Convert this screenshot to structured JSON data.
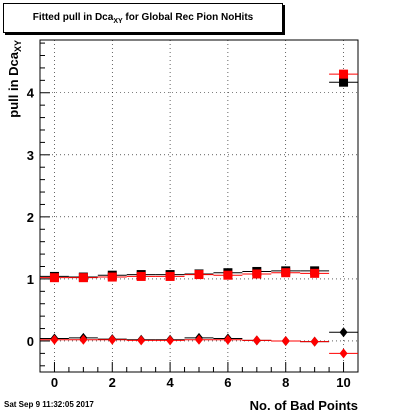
{
  "title": {
    "prefix": "Fitted pull in Dca",
    "sub": "XY",
    "suffix": " for Global Rec Pion NoHits"
  },
  "timestamp": "Sat Sep  9 11:32:05 2017",
  "chart_data": {
    "type": "scatter",
    "title": "Fitted pull in Dca_XY for Global Rec Pion NoHits",
    "xlabel": "No. of Bad Points",
    "ylabel": "pull in Dca",
    "ylabel_sub": "XY",
    "xlim": [
      -0.5,
      10.5
    ],
    "ylim": [
      -0.5,
      4.85
    ],
    "xticks": [
      0,
      2,
      4,
      6,
      8,
      10
    ],
    "yticks": [
      0,
      1,
      2,
      3,
      4
    ],
    "grid": true,
    "series": [
      {
        "marker": "square",
        "color": "#000000",
        "x": [
          0,
          1,
          2,
          3,
          4,
          5,
          6,
          7,
          8,
          9,
          10
        ],
        "y": [
          1.04,
          1.03,
          1.06,
          1.07,
          1.07,
          1.08,
          1.1,
          1.12,
          1.13,
          1.13,
          4.17
        ]
      },
      {
        "marker": "square",
        "color": "#ff0000",
        "x": [
          0,
          1,
          2,
          3,
          4,
          5,
          6,
          7,
          8,
          9,
          10
        ],
        "y": [
          1.02,
          1.02,
          1.03,
          1.04,
          1.04,
          1.07,
          1.06,
          1.08,
          1.1,
          1.09,
          4.3
        ]
      },
      {
        "marker": "diamond",
        "color": "#000000",
        "x": [
          0,
          1,
          2,
          3,
          4,
          5,
          6,
          7,
          8,
          9,
          10
        ],
        "y": [
          0.04,
          0.05,
          0.03,
          0.02,
          0.02,
          0.05,
          0.04,
          0.01,
          0.0,
          -0.01,
          0.14
        ]
      },
      {
        "marker": "diamond",
        "color": "#ff0000",
        "x": [
          0,
          1,
          2,
          3,
          4,
          5,
          6,
          7,
          8,
          9,
          10
        ],
        "y": [
          0.02,
          0.02,
          0.02,
          0.01,
          0.01,
          0.02,
          0.02,
          0.01,
          0.0,
          -0.01,
          -0.2
        ]
      }
    ]
  }
}
